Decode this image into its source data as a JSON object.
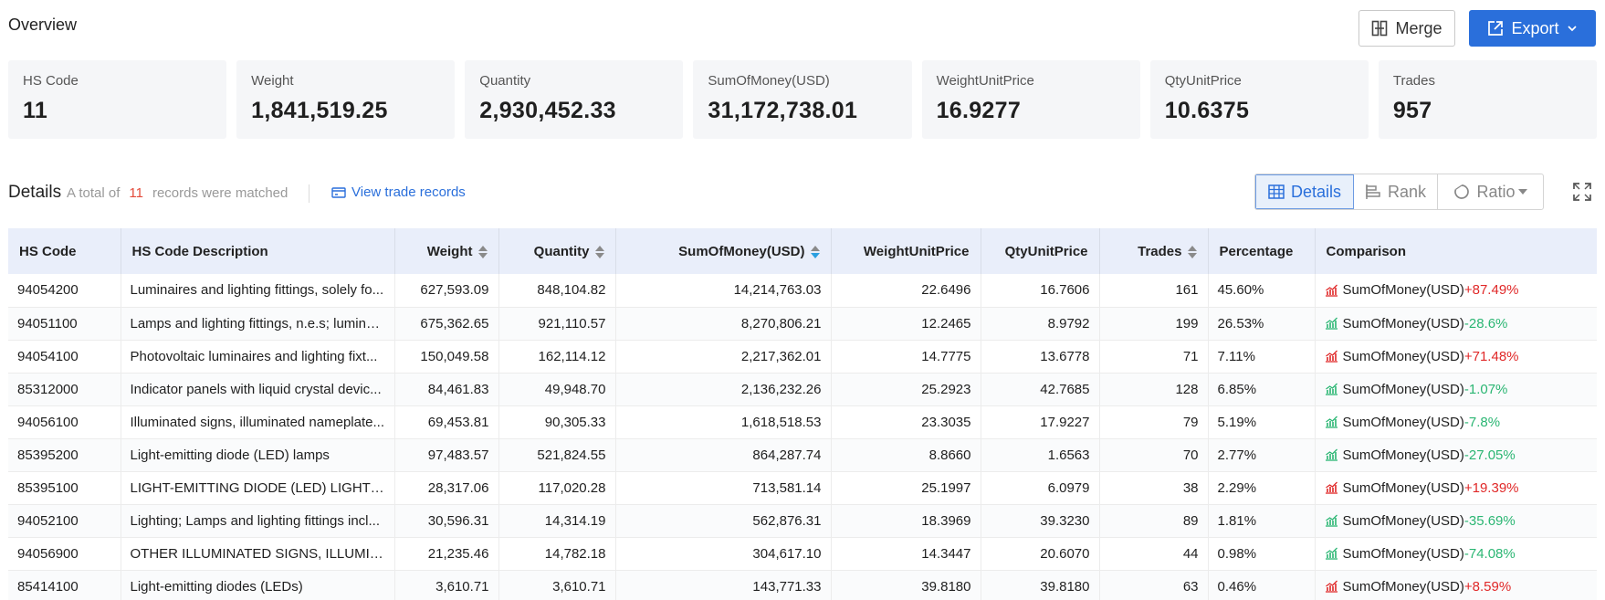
{
  "header": {
    "title": "Overview",
    "merge_label": "Merge",
    "export_label": "Export"
  },
  "stats": [
    {
      "label": "HS Code",
      "value": "11"
    },
    {
      "label": "Weight",
      "value": "1,841,519.25"
    },
    {
      "label": "Quantity",
      "value": "2,930,452.33"
    },
    {
      "label": "SumOfMoney(USD)",
      "value": "31,172,738.01"
    },
    {
      "label": "WeightUnitPrice",
      "value": "16.9277"
    },
    {
      "label": "QtyUnitPrice",
      "value": "10.6375"
    },
    {
      "label": "Trades",
      "value": "957"
    }
  ],
  "details": {
    "title": "Details",
    "meta_prefix": "A total of",
    "count": "11",
    "meta_suffix": "records were matched",
    "view_link": "View trade records",
    "tabs": {
      "details": "Details",
      "rank": "Rank",
      "ratio": "Ratio"
    }
  },
  "colors": {
    "accent": "#2a6fdb",
    "up": "#e02828",
    "down": "#2bb673",
    "header_bg": "#e9eefa"
  },
  "table": {
    "columns": [
      "HS Code",
      "HS Code Description",
      "Weight",
      "Quantity",
      "SumOfMoney(USD)",
      "WeightUnitPrice",
      "QtyUnitPrice",
      "Trades",
      "Percentage",
      "Comparison"
    ],
    "comparison_metric": "SumOfMoney(USD)",
    "rows": [
      {
        "code": "94054200",
        "desc": "Luminaires and lighting fittings, solely fo...",
        "weight": "627,593.09",
        "qty": "848,104.82",
        "money": "14,214,763.03",
        "wup": "22.6496",
        "qup": "16.7606",
        "trades": "161",
        "pct": "45.60%",
        "change": "+87.49%",
        "dir": "up"
      },
      {
        "code": "94051100",
        "desc": "Lamps and lighting fittings, n.e.s; lumino...",
        "weight": "675,362.65",
        "qty": "921,110.57",
        "money": "8,270,806.21",
        "wup": "12.2465",
        "qup": "8.9792",
        "trades": "199",
        "pct": "26.53%",
        "change": "-28.6%",
        "dir": "down"
      },
      {
        "code": "94054100",
        "desc": "Photovoltaic luminaires and lighting fixt...",
        "weight": "150,049.58",
        "qty": "162,114.12",
        "money": "2,217,362.01",
        "wup": "14.7775",
        "qup": "13.6778",
        "trades": "71",
        "pct": "7.11%",
        "change": "+71.48%",
        "dir": "up"
      },
      {
        "code": "85312000",
        "desc": "Indicator panels with liquid crystal devic...",
        "weight": "84,461.83",
        "qty": "49,948.70",
        "money": "2,136,232.26",
        "wup": "25.2923",
        "qup": "42.7685",
        "trades": "128",
        "pct": "6.85%",
        "change": "-1.07%",
        "dir": "down"
      },
      {
        "code": "94056100",
        "desc": "Illuminated signs, illuminated nameplate...",
        "weight": "69,453.81",
        "qty": "90,305.33",
        "money": "1,618,518.53",
        "wup": "23.3035",
        "qup": "17.9227",
        "trades": "79",
        "pct": "5.19%",
        "change": "-7.8%",
        "dir": "down"
      },
      {
        "code": "85395200",
        "desc": "Light-emitting diode (LED) lamps",
        "weight": "97,483.57",
        "qty": "521,824.55",
        "money": "864,287.74",
        "wup": "8.8660",
        "qup": "1.6563",
        "trades": "70",
        "pct": "2.77%",
        "change": "-27.05%",
        "dir": "down"
      },
      {
        "code": "85395100",
        "desc": "LIGHT-EMITTING DIODE (LED) LIGHT SO...",
        "weight": "28,317.06",
        "qty": "117,020.28",
        "money": "713,581.14",
        "wup": "25.1997",
        "qup": "6.0979",
        "trades": "38",
        "pct": "2.29%",
        "change": "+19.39%",
        "dir": "up"
      },
      {
        "code": "94052100",
        "desc": "Lighting; Lamps and lighting fittings incl...",
        "weight": "30,596.31",
        "qty": "14,314.19",
        "money": "562,876.31",
        "wup": "18.3969",
        "qup": "39.3230",
        "trades": "89",
        "pct": "1.81%",
        "change": "-35.69%",
        "dir": "down"
      },
      {
        "code": "94056900",
        "desc": "OTHER ILLUMINATED SIGNS, ILLUMINA...",
        "weight": "21,235.46",
        "qty": "14,782.18",
        "money": "304,617.10",
        "wup": "14.3447",
        "qup": "20.6070",
        "trades": "44",
        "pct": "0.98%",
        "change": "-74.08%",
        "dir": "down"
      },
      {
        "code": "85414100",
        "desc": "Light-emitting diodes (LEDs)",
        "weight": "3,610.71",
        "qty": "3,610.71",
        "money": "143,771.33",
        "wup": "39.8180",
        "qup": "39.8180",
        "trades": "63",
        "pct": "0.46%",
        "change": "+8.59%",
        "dir": "up"
      }
    ]
  }
}
